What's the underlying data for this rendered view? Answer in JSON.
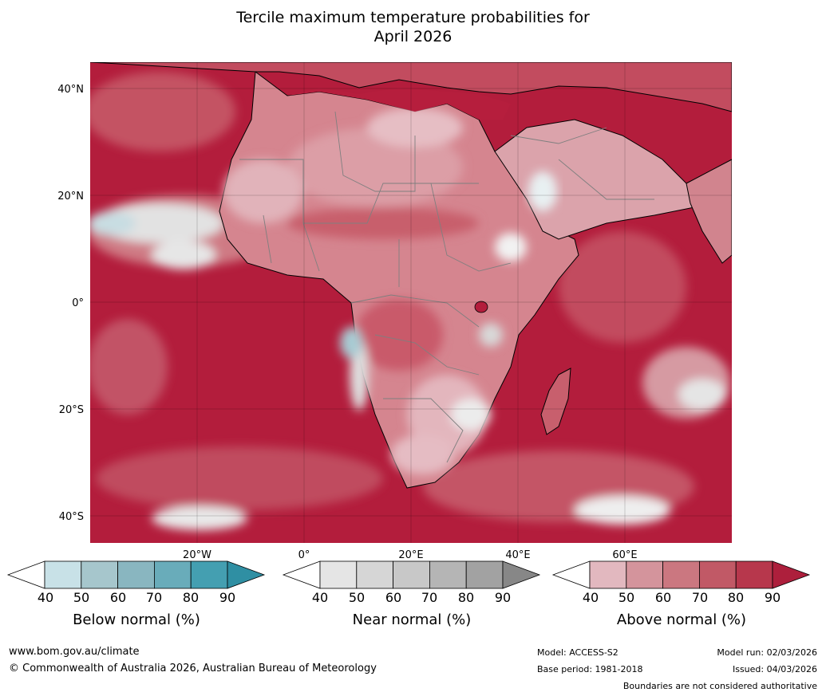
{
  "title": {
    "line1": "Tercile maximum temperature probabilities for",
    "line2": "April 2026"
  },
  "map": {
    "region": "Africa",
    "lat_labels": [
      "40°N",
      "20°N",
      "0°",
      "20°S",
      "40°S"
    ],
    "lon_labels": [
      "20°W",
      "0°",
      "20°E",
      "40°E",
      "60°E"
    ]
  },
  "colorbars": [
    {
      "label": "Below normal (%)",
      "ticks": [
        "40",
        "50",
        "60",
        "70",
        "80",
        "90"
      ],
      "colors": [
        "#ffffff",
        "#c8e1e7",
        "#a6c6cc",
        "#89b6c0",
        "#69acba",
        "#449fb1",
        "#2f8fa3"
      ]
    },
    {
      "label": "Near normal (%)",
      "ticks": [
        "40",
        "50",
        "60",
        "70",
        "80",
        "90"
      ],
      "colors": [
        "#ffffff",
        "#e5e5e5",
        "#d6d6d6",
        "#c8c8c8",
        "#b5b5b5",
        "#a2a2a2",
        "#878787"
      ]
    },
    {
      "label": "Above normal (%)",
      "ticks": [
        "40",
        "50",
        "60",
        "70",
        "80",
        "90"
      ],
      "colors": [
        "#ffffff",
        "#e2b8bf",
        "#d4949c",
        "#cb7780",
        "#c15966",
        "#b7374c",
        "#ad1f3c"
      ]
    }
  ],
  "footer": {
    "website": "www.bom.gov.au/climate",
    "copyright": "© Commonwealth of Australia 2026, Australian Bureau of Meteorology",
    "model": "Model: ACCESS-S2",
    "base_period": "Base period: 1981-2018",
    "model_run": "Model run: 02/03/2026",
    "issued": "Issued: 04/03/2026",
    "boundaries_note": "Boundaries are not considered authoritative"
  }
}
